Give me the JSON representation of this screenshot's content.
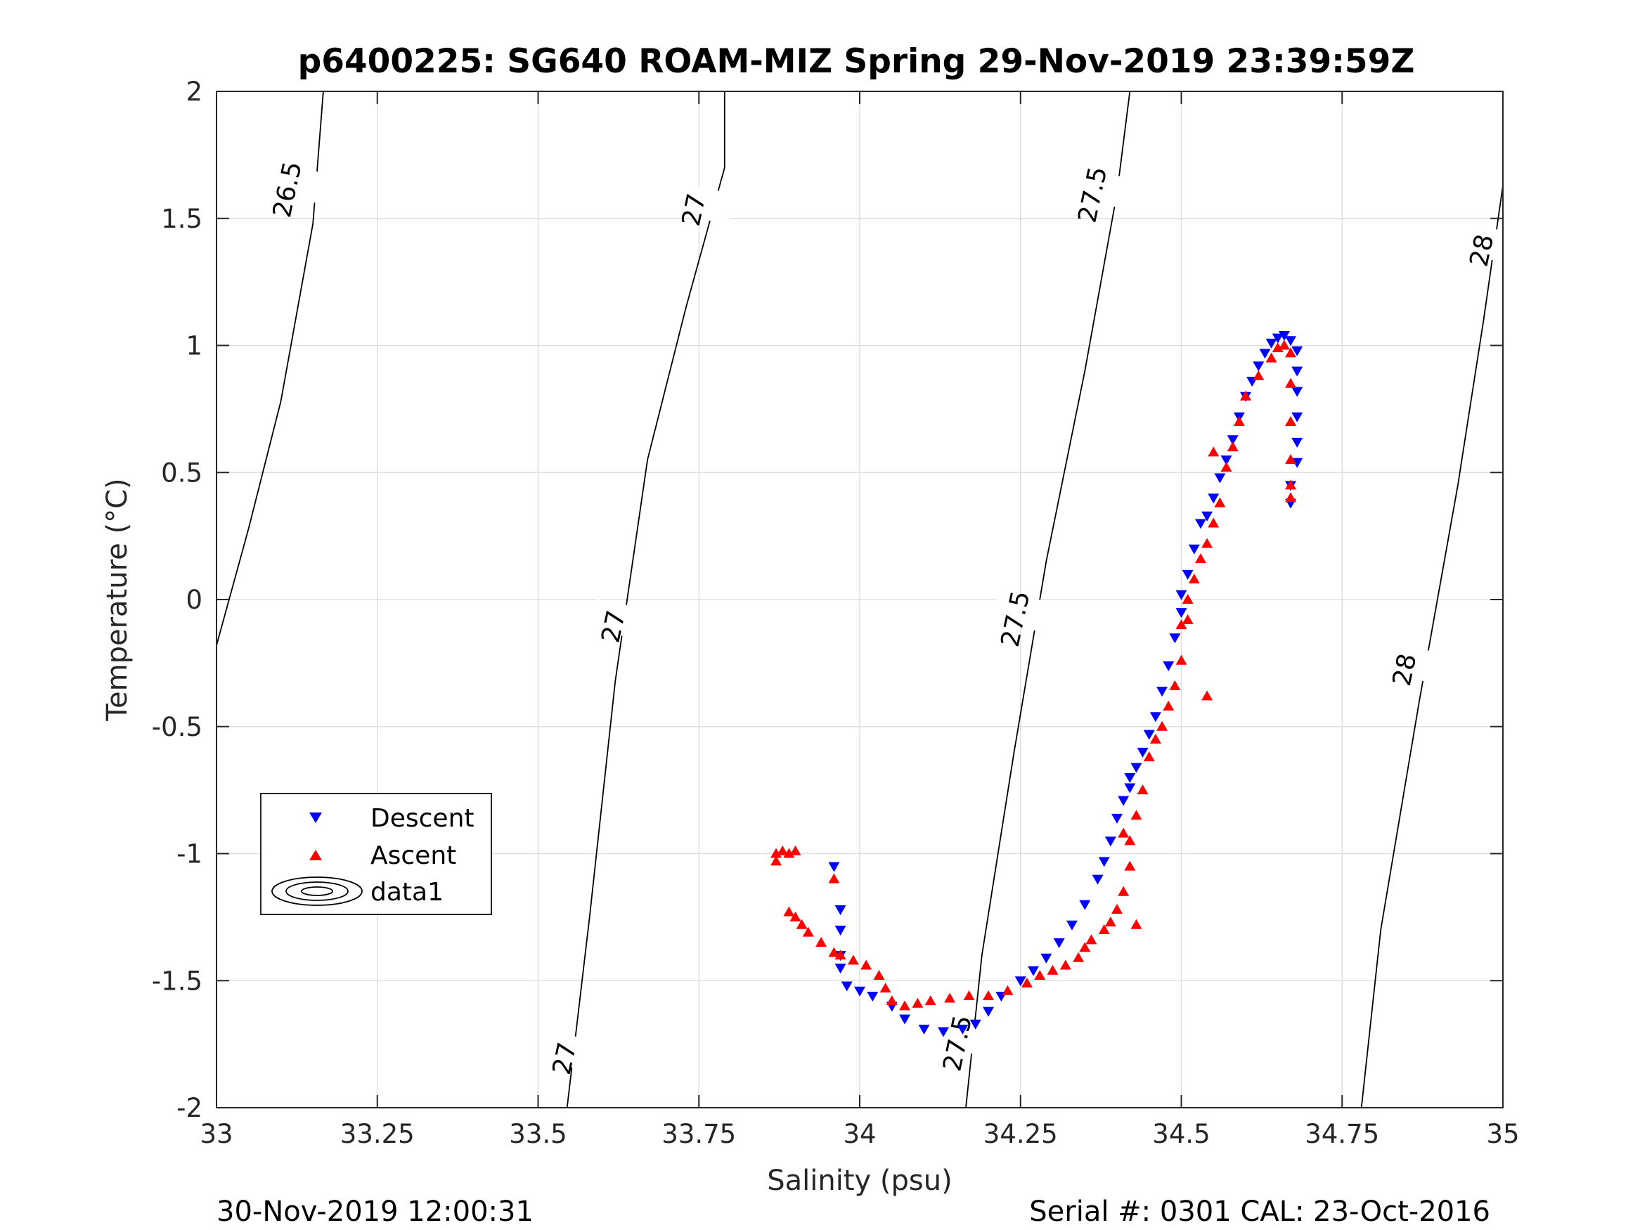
{
  "chart_data": {
    "type": "scatter",
    "title": "p6400225: SG640 ROAM-MIZ Spring 29-Nov-2019 23:39:59Z",
    "xlabel": "Salinity (psu)",
    "ylabel": "Temperature (°C)",
    "xlim": [
      33,
      35
    ],
    "ylim": [
      -2,
      2
    ],
    "xticks": [
      33,
      33.25,
      33.5,
      33.75,
      34,
      34.25,
      34.5,
      34.75,
      35
    ],
    "xtick_labels": [
      "33",
      "33.25",
      "33.5",
      "33.75",
      "34",
      "34.25",
      "34.5",
      "34.75",
      "35"
    ],
    "yticks": [
      -2,
      -1.5,
      -1,
      -0.5,
      0,
      0.5,
      1,
      1.5,
      2
    ],
    "ytick_labels": [
      "-2",
      "-1.5",
      "-1",
      "-0.5",
      "0",
      "0.5",
      "1",
      "1.5",
      "2"
    ],
    "grid": true,
    "legend_position": "lower-left",
    "footer_left": "30-Nov-2019 12:00:31",
    "footer_right": "Serial #: 0301  CAL: 23-Oct-2016",
    "series": [
      {
        "name": "Descent",
        "marker": "triangle-down",
        "color": "#0000ff",
        "points": [
          [
            33.96,
            -1.05
          ],
          [
            33.97,
            -1.22
          ],
          [
            33.97,
            -1.3
          ],
          [
            33.97,
            -1.4
          ],
          [
            33.97,
            -1.45
          ],
          [
            33.98,
            -1.52
          ],
          [
            34.0,
            -1.54
          ],
          [
            34.02,
            -1.56
          ],
          [
            34.05,
            -1.6
          ],
          [
            34.07,
            -1.65
          ],
          [
            34.1,
            -1.69
          ],
          [
            34.13,
            -1.7
          ],
          [
            34.16,
            -1.69
          ],
          [
            34.18,
            -1.67
          ],
          [
            34.2,
            -1.62
          ],
          [
            34.22,
            -1.56
          ],
          [
            34.25,
            -1.5
          ],
          [
            34.27,
            -1.46
          ],
          [
            34.29,
            -1.41
          ],
          [
            34.31,
            -1.35
          ],
          [
            34.33,
            -1.28
          ],
          [
            34.35,
            -1.2
          ],
          [
            34.37,
            -1.1
          ],
          [
            34.38,
            -1.03
          ],
          [
            34.39,
            -0.95
          ],
          [
            34.4,
            -0.86
          ],
          [
            34.41,
            -0.79
          ],
          [
            34.42,
            -0.74
          ],
          [
            34.42,
            -0.7
          ],
          [
            34.43,
            -0.66
          ],
          [
            34.44,
            -0.6
          ],
          [
            34.45,
            -0.53
          ],
          [
            34.46,
            -0.46
          ],
          [
            34.47,
            -0.36
          ],
          [
            34.48,
            -0.26
          ],
          [
            34.49,
            -0.15
          ],
          [
            34.5,
            -0.05
          ],
          [
            34.5,
            0.02
          ],
          [
            34.51,
            0.1
          ],
          [
            34.52,
            0.2
          ],
          [
            34.53,
            0.3
          ],
          [
            34.54,
            0.33
          ],
          [
            34.55,
            0.4
          ],
          [
            34.56,
            0.48
          ],
          [
            34.57,
            0.55
          ],
          [
            34.58,
            0.63
          ],
          [
            34.59,
            0.72
          ],
          [
            34.6,
            0.8
          ],
          [
            34.61,
            0.86
          ],
          [
            34.62,
            0.92
          ],
          [
            34.63,
            0.97
          ],
          [
            34.64,
            1.01
          ],
          [
            34.65,
            1.03
          ],
          [
            34.66,
            1.04
          ],
          [
            34.67,
            1.02
          ],
          [
            34.68,
            0.98
          ],
          [
            34.68,
            0.9
          ],
          [
            34.68,
            0.82
          ],
          [
            34.68,
            0.72
          ],
          [
            34.68,
            0.62
          ],
          [
            34.68,
            0.54
          ],
          [
            34.67,
            0.45
          ],
          [
            34.67,
            0.38
          ]
        ]
      },
      {
        "name": "Ascent",
        "marker": "triangle-up",
        "color": "#ff0000",
        "points": [
          [
            33.87,
            -1.03
          ],
          [
            33.87,
            -1.0
          ],
          [
            33.88,
            -0.99
          ],
          [
            33.89,
            -1.0
          ],
          [
            33.9,
            -0.99
          ],
          [
            33.89,
            -1.23
          ],
          [
            33.9,
            -1.25
          ],
          [
            33.91,
            -1.28
          ],
          [
            33.92,
            -1.31
          ],
          [
            33.94,
            -1.35
          ],
          [
            33.96,
            -1.39
          ],
          [
            33.96,
            -1.1
          ],
          [
            33.97,
            -1.4
          ],
          [
            33.99,
            -1.42
          ],
          [
            34.01,
            -1.44
          ],
          [
            34.03,
            -1.48
          ],
          [
            34.04,
            -1.53
          ],
          [
            34.05,
            -1.58
          ],
          [
            34.07,
            -1.6
          ],
          [
            34.09,
            -1.59
          ],
          [
            34.11,
            -1.58
          ],
          [
            34.14,
            -1.57
          ],
          [
            34.17,
            -1.56
          ],
          [
            34.2,
            -1.56
          ],
          [
            34.23,
            -1.54
          ],
          [
            34.26,
            -1.51
          ],
          [
            34.28,
            -1.48
          ],
          [
            34.3,
            -1.46
          ],
          [
            34.32,
            -1.44
          ],
          [
            34.34,
            -1.41
          ],
          [
            34.35,
            -1.37
          ],
          [
            34.36,
            -1.34
          ],
          [
            34.38,
            -1.3
          ],
          [
            34.39,
            -1.27
          ],
          [
            34.4,
            -1.22
          ],
          [
            34.41,
            -1.15
          ],
          [
            34.42,
            -1.05
          ],
          [
            34.42,
            -0.95
          ],
          [
            34.43,
            -0.85
          ],
          [
            34.44,
            -0.75
          ],
          [
            34.45,
            -0.62
          ],
          [
            34.46,
            -0.55
          ],
          [
            34.47,
            -0.5
          ],
          [
            34.48,
            -0.42
          ],
          [
            34.49,
            -0.34
          ],
          [
            34.5,
            -0.24
          ],
          [
            34.51,
            -0.08
          ],
          [
            34.51,
            0.0
          ],
          [
            34.52,
            0.08
          ],
          [
            34.53,
            0.16
          ],
          [
            34.54,
            0.22
          ],
          [
            34.55,
            0.3
          ],
          [
            34.56,
            0.38
          ],
          [
            34.55,
            0.58
          ],
          [
            34.57,
            0.52
          ],
          [
            34.58,
            0.6
          ],
          [
            34.59,
            0.7
          ],
          [
            34.6,
            0.8
          ],
          [
            34.62,
            0.88
          ],
          [
            34.64,
            0.95
          ],
          [
            34.65,
            0.99
          ],
          [
            34.66,
            1.0
          ],
          [
            34.67,
            0.97
          ],
          [
            34.67,
            0.85
          ],
          [
            34.67,
            0.7
          ],
          [
            34.67,
            0.55
          ],
          [
            34.67,
            0.45
          ],
          [
            34.67,
            0.4
          ],
          [
            34.54,
            -0.38
          ],
          [
            34.5,
            -0.1
          ],
          [
            34.43,
            -1.28
          ],
          [
            34.41,
            -0.92
          ]
        ]
      }
    ],
    "contour_labels": [
      "26.5",
      "27",
      "27.5",
      "28"
    ],
    "legend": {
      "entries": [
        "Descent",
        "Ascent",
        "data1"
      ]
    }
  }
}
